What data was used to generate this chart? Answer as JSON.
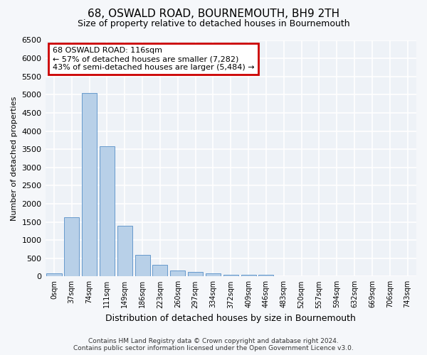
{
  "title": "68, OSWALD ROAD, BOURNEMOUTH, BH9 2TH",
  "subtitle": "Size of property relative to detached houses in Bournemouth",
  "xlabel": "Distribution of detached houses by size in Bournemouth",
  "ylabel": "Number of detached properties",
  "footer_line1": "Contains HM Land Registry data © Crown copyright and database right 2024.",
  "footer_line2": "Contains public sector information licensed under the Open Government Licence v3.0.",
  "bar_labels": [
    "0sqm",
    "37sqm",
    "74sqm",
    "111sqm",
    "149sqm",
    "186sqm",
    "223sqm",
    "260sqm",
    "297sqm",
    "334sqm",
    "372sqm",
    "409sqm",
    "446sqm",
    "483sqm",
    "520sqm",
    "557sqm",
    "594sqm",
    "632sqm",
    "669sqm",
    "706sqm",
    "743sqm"
  ],
  "bar_values": [
    75,
    1620,
    5050,
    3580,
    1400,
    600,
    310,
    160,
    120,
    75,
    50,
    50,
    50,
    0,
    0,
    0,
    0,
    0,
    0,
    0,
    0
  ],
  "bar_color": "#b8d0e8",
  "bar_edge_color": "#6699cc",
  "bg_color": "#eef2f7",
  "grid_color": "#ffffff",
  "annotation_line1": "68 OSWALD ROAD: 116sqm",
  "annotation_line2": "← 57% of detached houses are smaller (7,282)",
  "annotation_line3": "43% of semi-detached houses are larger (5,484) →",
  "annotation_box_color": "#ffffff",
  "annotation_border_color": "#cc0000",
  "ylim": [
    0,
    6500
  ],
  "yticks": [
    0,
    500,
    1000,
    1500,
    2000,
    2500,
    3000,
    3500,
    4000,
    4500,
    5000,
    5500,
    6000,
    6500
  ]
}
